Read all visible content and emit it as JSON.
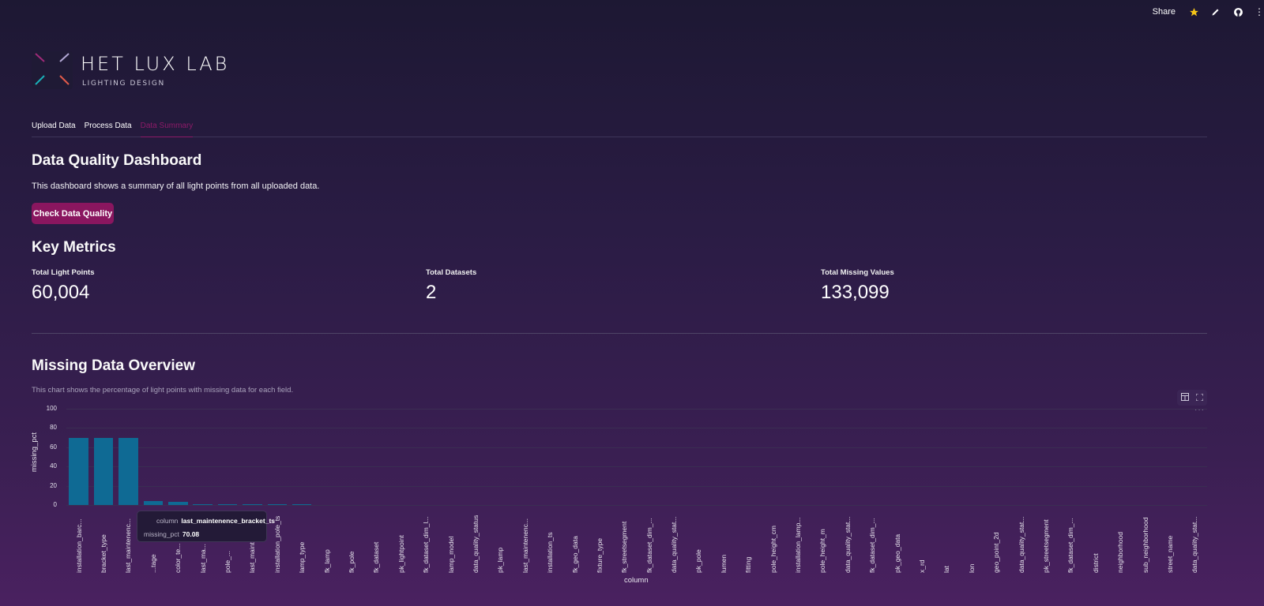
{
  "topbar": {
    "share_label": "Share",
    "icons": [
      "star-icon",
      "edit-pencil-icon",
      "github-icon",
      "more-vertical-icon"
    ]
  },
  "brand": {
    "title": "HET LUX LAB",
    "subtitle": "LIGHTING DESIGN"
  },
  "tabs": [
    {
      "label": "Upload Data",
      "active": false
    },
    {
      "label": "Process Data",
      "active": false
    },
    {
      "label": "Data Summary",
      "active": true
    }
  ],
  "page": {
    "title": "Data Quality Dashboard",
    "description": "This dashboard shows a summary of all light points from all uploaded data.",
    "check_button": "Check Data Quality"
  },
  "metrics": {
    "heading": "Key Metrics",
    "items": [
      {
        "label": "Total Light Points",
        "value": "60,004"
      },
      {
        "label": "Total Datasets",
        "value": "2"
      },
      {
        "label": "Total Missing Values",
        "value": "133,099"
      }
    ]
  },
  "missing": {
    "heading": "Missing Data Overview",
    "caption": "This chart shows the percentage of light points with missing data for each field.",
    "tooltip": {
      "column_key": "column",
      "column_value": "last_maintenence_bracket_ts",
      "pct_key": "missing_pct",
      "pct_value": "70.08"
    }
  },
  "colors": {
    "bar": "#0f6a94",
    "accent": "#8a165f",
    "active_tab": "#8c1a68"
  },
  "chart_data": {
    "type": "bar",
    "title": "",
    "xlabel": "column",
    "ylabel": "missing_pct",
    "ylim": [
      0,
      100
    ],
    "yticks": [
      0,
      20,
      40,
      60,
      80,
      100
    ],
    "grid": true,
    "categories": [
      "installation_barc...",
      "bracket_type",
      "last_maintenenc...",
      "...tage",
      "color_te...",
      "last_ma...",
      "pole_...",
      "last_maintenenc...",
      "installation_pole_ts",
      "lamp_type",
      "fk_lamp",
      "fk_pole",
      "fk_dataset",
      "pk_lightpoint",
      "fk_dataset_dim_l...",
      "lamp_model",
      "data_quality_status",
      "pk_lamp",
      "last_maintenenc...",
      "installation_ts",
      "fk_geo_data",
      "fixture_type",
      "fk_streetsegment",
      "fk_dataset_dim_...",
      "data_quality_stat...",
      "pk_pole",
      "lumen",
      "fitting",
      "pole_height_cm",
      "installation_lamp...",
      "pole_height_m",
      "data_quality_stat...",
      "fk_dataset_dim_...",
      "pk_geo_data",
      "x_rd",
      "lat",
      "lon",
      "geo_point_2d",
      "data_quality_stat...",
      "pk_streetsegment",
      "fk_dataset_dim_...",
      "district",
      "neighborhood",
      "sub_neighborhood",
      "street_name",
      "data_quality_stat..."
    ],
    "values": [
      70.08,
      70.08,
      70.08,
      4.5,
      3.5,
      1.0,
      0.8,
      0.3,
      0.3,
      0.2,
      0,
      0,
      0,
      0,
      0,
      0,
      0,
      0,
      0,
      0,
      0,
      0,
      0,
      0,
      0,
      0,
      0,
      0,
      0,
      0,
      0,
      0,
      0,
      0,
      0,
      0,
      0,
      0,
      0,
      0,
      0,
      0,
      0,
      0,
      0,
      0
    ]
  }
}
